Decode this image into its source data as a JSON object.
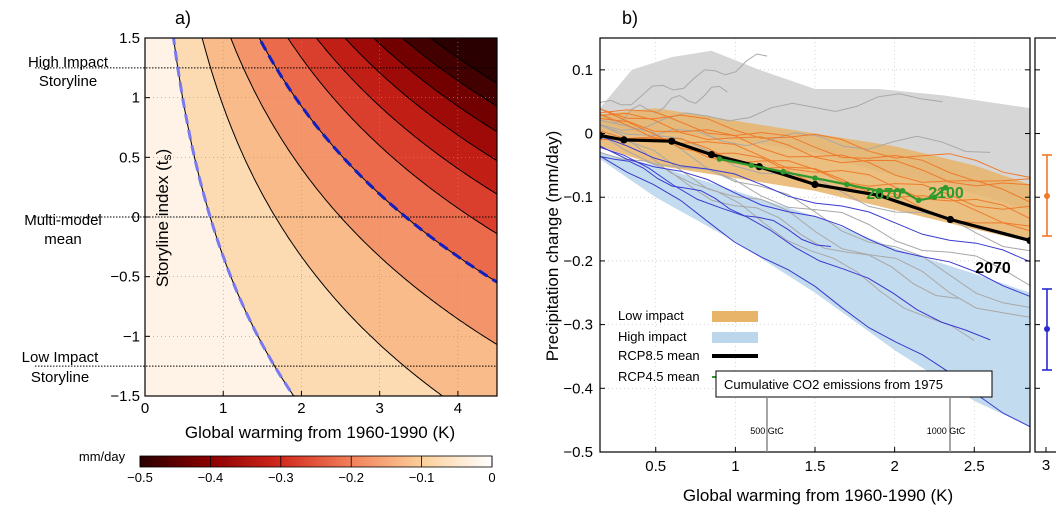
{
  "panel_a": {
    "label": "a)",
    "ylabel": "Storyline index (t",
    "ylabel_sub": "s",
    "ylabel_close": ")",
    "xlabel": "Global warming from 1960-1990 (K)",
    "annotations": [
      "High Impact",
      "Storyline",
      "Multi-model",
      "mean",
      "Low Impact",
      "Storyline"
    ],
    "colorbar_unit": "mm/day",
    "colorbar_ticks": [
      "−0.5",
      "−0.4",
      "−0.3",
      "−0.2",
      "−0.1",
      "0"
    ]
  },
  "panel_b": {
    "label": "b)",
    "ylabel": "Precipitation change (mm/day)",
    "xlabel": "Global warming from 1960-1990 (K)",
    "legend": [
      "Low impact",
      "High impact",
      "RCP8.5 mean",
      "RCP4.5 mean"
    ],
    "co2_box": "Cumulative CO2 emissions from 1975",
    "co2_ticks": [
      "500 GtC",
      "1000 GtC"
    ],
    "line_labels": {
      "rcp45_a": "2070",
      "rcp45_b": "2100",
      "rcp85": "2070"
    }
  },
  "panel_c": {
    "xtick": "3"
  },
  "colors": {
    "low_impact": "#e7b46a",
    "high_impact": "#bcd7ec",
    "rcp85": "#000000",
    "rcp45": "#2e9a2e",
    "orange_models": "#ef7a2a",
    "blue_models": "#3a3ad0",
    "gray_models": "#a8a8a8",
    "dashed_dark": "#1020c0",
    "dashed_light": "#7a7af0"
  },
  "chart_data": [
    {
      "type": "heatmap",
      "title": "a)",
      "xlabel": "Global warming from 1960-1990 (K)",
      "ylabel": "Storyline index (ts)",
      "xlim": [
        0,
        4.5
      ],
      "ylim": [
        -1.5,
        1.5
      ],
      "xticks": [
        0,
        1,
        2,
        3,
        4
      ],
      "yticks": [
        -1.5,
        -1,
        -0.5,
        0,
        0.5,
        1,
        1.5
      ],
      "ytick_labels": [
        "−1.5",
        "−1",
        "−0.5",
        "0",
        "0.5",
        "1",
        "1.5"
      ],
      "storyline_lines": [
        1.25,
        0,
        -1.25
      ],
      "colorbar": {
        "label": "mm/day",
        "range": [
          -0.5,
          0
        ],
        "ticks": [
          -0.5,
          -0.4,
          -0.3,
          -0.2,
          -0.1,
          0
        ]
      },
      "contour_levels": [
        -0.5,
        -0.45,
        -0.4,
        -0.35,
        -0.3,
        -0.25,
        -0.2,
        -0.15,
        -0.1,
        -0.05,
        0
      ]
    },
    {
      "type": "line",
      "title": "b)",
      "xlabel": "Global warming from 1960-1990 (K)",
      "ylabel": "Precipitation change (mm/day)",
      "xlim": [
        0.15,
        2.85
      ],
      "ylim": [
        -0.5,
        0.15
      ],
      "xticks": [
        0.5,
        1,
        1.5,
        2,
        2.5
      ],
      "yticks": [
        -0.5,
        -0.4,
        -0.3,
        -0.2,
        -0.1,
        0,
        0.1
      ],
      "ytick_labels": [
        "−0.5",
        "−0.4",
        "−0.3",
        "−0.2",
        "−0.1",
        "0",
        "0.1"
      ],
      "legend_position": "lower-left",
      "series": [
        {
          "name": "RCP8.5 mean",
          "x": [
            0.15,
            0.3,
            0.6,
            0.85,
            1.15,
            1.5,
            1.9,
            2.35,
            2.85
          ],
          "y": [
            -0.003,
            -0.01,
            -0.012,
            -0.033,
            -0.052,
            -0.08,
            -0.097,
            -0.135,
            -0.168
          ]
        },
        {
          "name": "RCP4.5 mean",
          "x": [
            0.9,
            1.1,
            1.3,
            1.5,
            1.7,
            1.9,
            2.05,
            2.15,
            2.25,
            2.32
          ],
          "y": [
            -0.04,
            -0.05,
            -0.06,
            -0.07,
            -0.08,
            -0.09,
            -0.09,
            -0.105,
            -0.1,
            -0.085
          ]
        },
        {
          "name": "Low impact",
          "x": [
            0.15,
            0.5,
            1.0,
            1.5,
            2.0,
            2.5,
            2.85
          ],
          "y_upper": [
            0.03,
            0.04,
            0.02,
            0.0,
            -0.02,
            -0.05,
            -0.08
          ],
          "y_lower": [
            -0.02,
            -0.05,
            -0.07,
            -0.09,
            -0.12,
            -0.15,
            -0.17
          ]
        },
        {
          "name": "High impact",
          "x": [
            0.15,
            0.5,
            1.0,
            1.5,
            2.0,
            2.5,
            2.85
          ],
          "y_upper": [
            -0.03,
            -0.05,
            -0.09,
            -0.13,
            -0.18,
            -0.22,
            -0.25
          ],
          "y_lower": [
            -0.04,
            -0.1,
            -0.17,
            -0.25,
            -0.34,
            -0.42,
            -0.46
          ]
        }
      ],
      "annotations": [
        "2070",
        "2100",
        "2070"
      ],
      "secondary_axis": {
        "label": "Cumulative CO2 emissions from 1975",
        "ticks": [
          "500 GtC",
          "1000 GtC"
        ]
      }
    }
  ]
}
